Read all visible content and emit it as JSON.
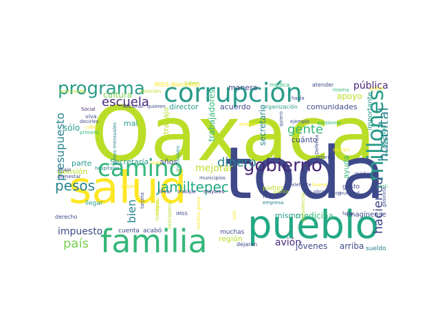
{
  "palette": {
    "yellow_green": "#bade28",
    "yellow": "#fde725",
    "teal": "#2a9b8a",
    "green": "#35b779",
    "indigo": "#3e4989",
    "purple": "#482878",
    "light_green": "#7ad151",
    "mid_green": "#22a884",
    "blue_teal": "#26828e",
    "dark_purple": "#440154"
  },
  "words": [
    {
      "text": "Oaxaca",
      "color": "yellow_green"
    },
    {
      "text": "toda",
      "color": "indigo"
    },
    {
      "text": "salud",
      "color": "yellow"
    },
    {
      "text": "pueblo",
      "color": "mid_green"
    },
    {
      "text": "corrupción",
      "color": "teal"
    },
    {
      "text": "familia",
      "color": "green"
    },
    {
      "text": "camino",
      "color": "green"
    },
    {
      "text": "millones",
      "color": "teal"
    },
    {
      "text": "gobierno",
      "color": "purple"
    },
    {
      "text": "programa",
      "color": "teal"
    },
    {
      "text": "hospital",
      "color": "blue_teal"
    },
    {
      "text": "pesos",
      "color": "blue_teal"
    },
    {
      "text": "Jamiltepec",
      "color": "mid_green"
    },
    {
      "text": "presupuesto",
      "color": "blue_teal"
    },
    {
      "text": "haciendo",
      "color": "indigo"
    },
    {
      "text": "dinero",
      "color": "blue_teal"
    },
    {
      "text": "escuela",
      "color": "purple"
    },
    {
      "text": "gente",
      "color": "green"
    },
    {
      "text": "país",
      "color": "light_green"
    },
    {
      "text": "bien",
      "color": "blue_teal"
    },
    {
      "text": "impuesto",
      "color": "indigo"
    },
    {
      "text": "mejorar",
      "color": "yellow_green"
    },
    {
      "text": "pública",
      "color": "purple"
    },
    {
      "text": "medicina",
      "color": "green"
    },
    {
      "text": "avión",
      "color": "purple"
    },
    {
      "text": "jóvenes",
      "color": "indigo"
    },
    {
      "text": "arriba",
      "color": "indigo"
    },
    {
      "text": "cultura",
      "color": "light_green"
    },
    {
      "text": "trabajadores",
      "color": "green"
    },
    {
      "text": "secretario",
      "color": "blue_teal"
    },
    {
      "text": "comunidades",
      "color": "indigo"
    },
    {
      "text": "apoyo",
      "color": "yellow_green"
    },
    {
      "text": "sólo",
      "color": "teal"
    },
    {
      "text": "parte",
      "color": "teal"
    },
    {
      "text": "Secretaría",
      "color": "teal"
    },
    {
      "text": "años",
      "color": "indigo"
    },
    {
      "text": "director",
      "color": "teal"
    },
    {
      "text": "acuerdo",
      "color": "indigo"
    },
    {
      "text": "manera",
      "color": "indigo"
    },
    {
      "text": "mal",
      "color": "teal"
    },
    {
      "text": "trabajo",
      "color": "yellow_green"
    },
    {
      "text": "pensión",
      "color": "yellow_green"
    },
    {
      "text": "ayuda",
      "color": "green"
    },
    {
      "text": "cuánto",
      "color": "indigo"
    },
    {
      "text": "importante",
      "color": "teal"
    },
    {
      "text": "mismo",
      "color": "teal"
    },
    {
      "text": "región",
      "color": "yellow_green"
    },
    {
      "text": "muchas",
      "color": "indigo"
    },
    {
      "text": "cuenta",
      "color": "indigo"
    },
    {
      "text": "acabó",
      "color": "indigo"
    },
    {
      "text": "imagínense",
      "color": "indigo"
    },
    {
      "text": "sueldo",
      "color": "blue_teal"
    },
    {
      "text": "gusto",
      "color": "indigo"
    },
    {
      "text": "llegar",
      "color": "teal"
    },
    {
      "text": "mejor",
      "color": "indigo"
    },
    {
      "text": "padres",
      "color": "yellow_green"
    },
    {
      "text": "derecho",
      "color": "indigo"
    },
    {
      "text": "dejaron",
      "color": "indigo"
    },
    {
      "text": "IMSS Bienestar",
      "color": "yellow"
    },
    {
      "text": "médica",
      "color": "green"
    },
    {
      "text": "atender",
      "color": "indigo"
    },
    {
      "text": "misma",
      "color": "green"
    },
    {
      "text": "hacía",
      "color": "indigo"
    },
    {
      "text": "organización",
      "color": "teal"
    },
    {
      "text": "ejemplo",
      "color": "indigo"
    },
    {
      "text": "problema",
      "color": "green"
    },
    {
      "text": "reforma",
      "color": "indigo"
    },
    {
      "text": "quiero",
      "color": "indigo"
    },
    {
      "text": "empleo",
      "color": "yellow"
    },
    {
      "text": "Social",
      "color": "purple"
    },
    {
      "text": "viva",
      "color": "indigo"
    },
    {
      "text": "decirles",
      "color": "indigo"
    },
    {
      "text": "cabo",
      "color": "yellow"
    },
    {
      "text": "primero",
      "color": "green"
    },
    {
      "text": "Nacional",
      "color": "indigo"
    },
    {
      "text": "quieren",
      "color": "indigo"
    },
    {
      "text": "avanzando",
      "color": "yellow_green"
    },
    {
      "text": "atención",
      "color": "yellow_green"
    },
    {
      "text": "Saben",
      "color": "yellow_green"
    },
    {
      "text": "pobre",
      "color": "yellow"
    },
    {
      "text": "Bienestar",
      "color": "indigo"
    },
    {
      "text": "abajo",
      "color": "indigo"
    },
    {
      "text": "hospitales",
      "color": "blue_teal"
    },
    {
      "text": "pagar",
      "color": "yellow"
    },
    {
      "text": "llevar",
      "color": "indigo"
    },
    {
      "text": "trabajar",
      "color": "indigo"
    },
    {
      "text": "mayores",
      "color": "purple"
    },
    {
      "text": "municipios",
      "color": "indigo"
    },
    {
      "text": "elefante",
      "color": "indigo"
    },
    {
      "text": "buena",
      "color": "yellow"
    },
    {
      "text": "comunidad",
      "color": "indigo"
    },
    {
      "text": "planta",
      "color": "yellow_green"
    },
    {
      "text": "empresa",
      "color": "blue_teal"
    },
    {
      "text": "obras",
      "color": "indigo"
    },
    {
      "text": "falta",
      "color": "indigo"
    },
    {
      "text": "costa",
      "color": "green"
    },
    {
      "text": "médicos",
      "color": "indigo"
    },
    {
      "text": "IMSS",
      "color": "indigo"
    },
    {
      "text": "Seguro",
      "color": "yellow"
    },
    {
      "text": "nada",
      "color": "yellow"
    },
    {
      "text": "ir",
      "color": "indigo"
    },
    {
      "text": "llegamos",
      "color": "blue_teal"
    },
    {
      "text": "gasolina",
      "color": "indigo"
    },
    {
      "text": "Defensa",
      "color": "indigo"
    },
    {
      "text": "necesaria",
      "color": "teal"
    },
    {
      "text": "tarjeta",
      "color": "indigo"
    },
    {
      "text": "mentiras",
      "color": "yellow_green"
    },
    {
      "text": "presidencial",
      "color": "yellow_green"
    },
    {
      "text": "helicóptero",
      "color": "yellow_green"
    },
    {
      "text": "médico grave",
      "color": "yellow"
    },
    {
      "text": "seis",
      "color": "yellow"
    },
    {
      "text": "pesos mensuales",
      "color": "blue_teal"
    },
    {
      "text": "mensuales",
      "color": "teal"
    },
    {
      "text": "apoyo",
      "color": "yellow"
    }
  ]
}
